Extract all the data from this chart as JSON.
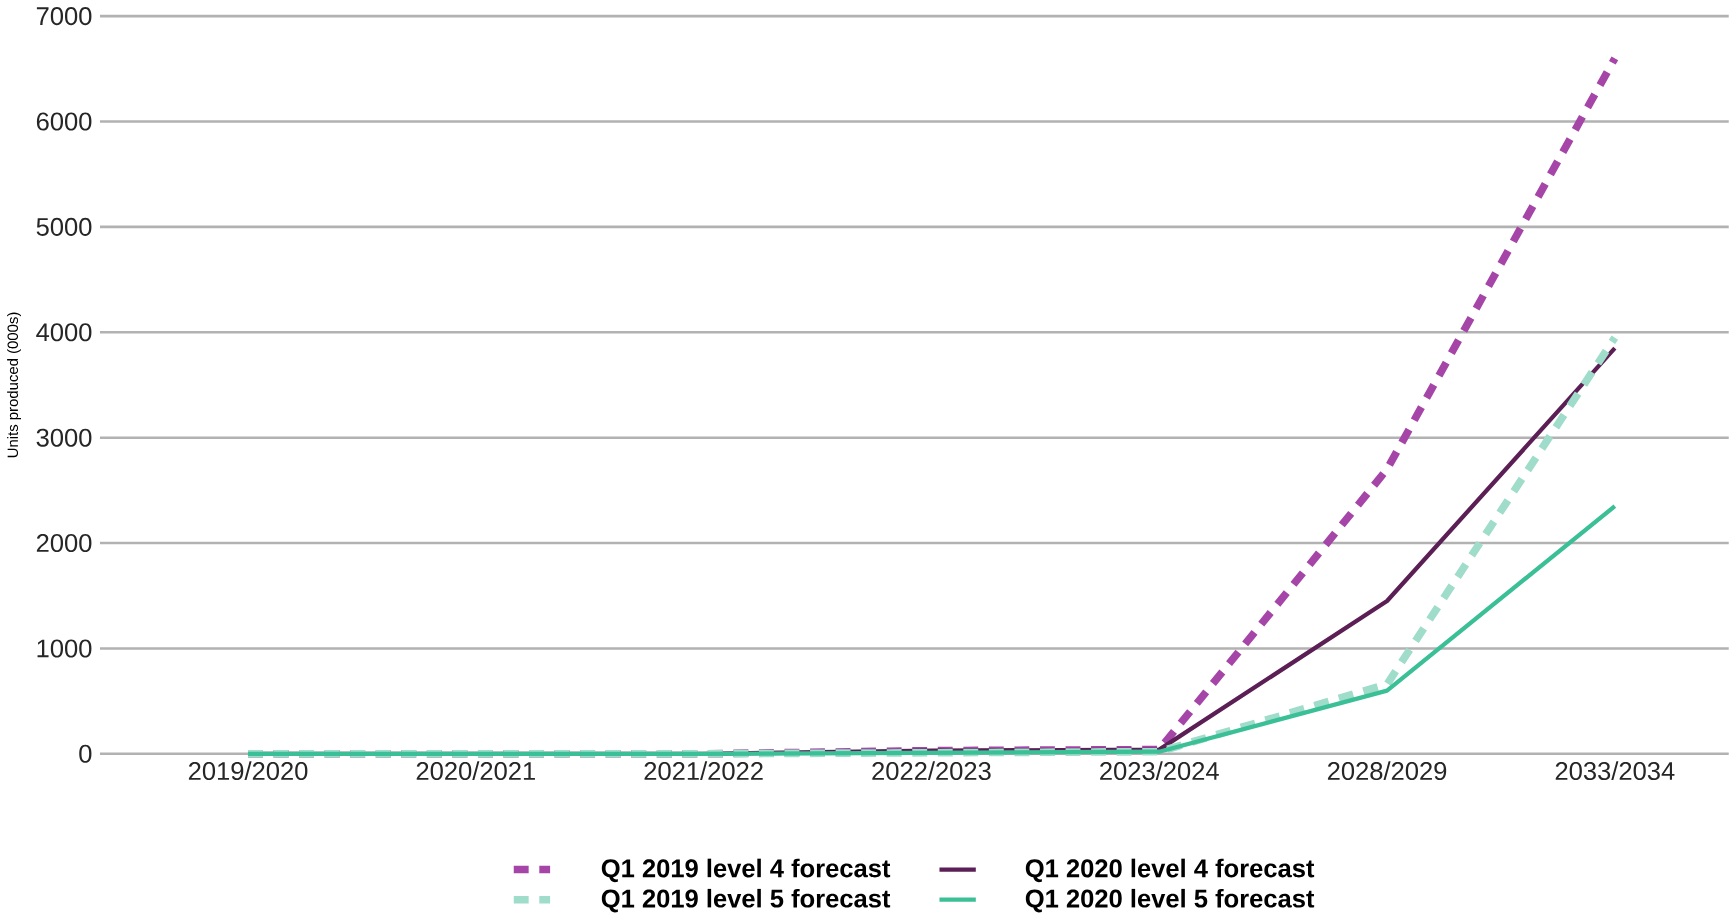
{
  "chart_data": {
    "type": "line",
    "ylabel": "Units produced (000s)",
    "categories": [
      "2019/2020",
      "2020/2021",
      "2021/2022",
      "2022/2023",
      "2023/2024",
      "2028/2029",
      "2033/2034"
    ],
    "series": [
      {
        "name": "Q1 2019 level 4 forecast",
        "color": "#a645a8",
        "line_style": "dashed",
        "values": [
          0,
          0,
          0,
          30,
          40,
          2700,
          6600
        ]
      },
      {
        "name": "Q1 2020 level 4 forecast",
        "color": "#5b1f55",
        "line_style": "solid",
        "values": [
          0,
          0,
          0,
          30,
          40,
          1450,
          3850
        ]
      },
      {
        "name": "Q1 2019 level 5 forecast",
        "color": "#9fdcc9",
        "line_style": "dashed",
        "values": [
          0,
          0,
          0,
          10,
          20,
          660,
          3950
        ]
      },
      {
        "name": "Q1 2020 level 5 forecast",
        "color": "#3bbf96",
        "line_style": "solid",
        "values": [
          0,
          0,
          0,
          10,
          20,
          600,
          2350
        ]
      }
    ],
    "ylim": [
      0,
      7000
    ],
    "yticks": [
      0,
      1000,
      2000,
      3000,
      4000,
      5000,
      6000,
      7000
    ],
    "grid": "y",
    "legend": "bottom",
    "marker": "none"
  }
}
